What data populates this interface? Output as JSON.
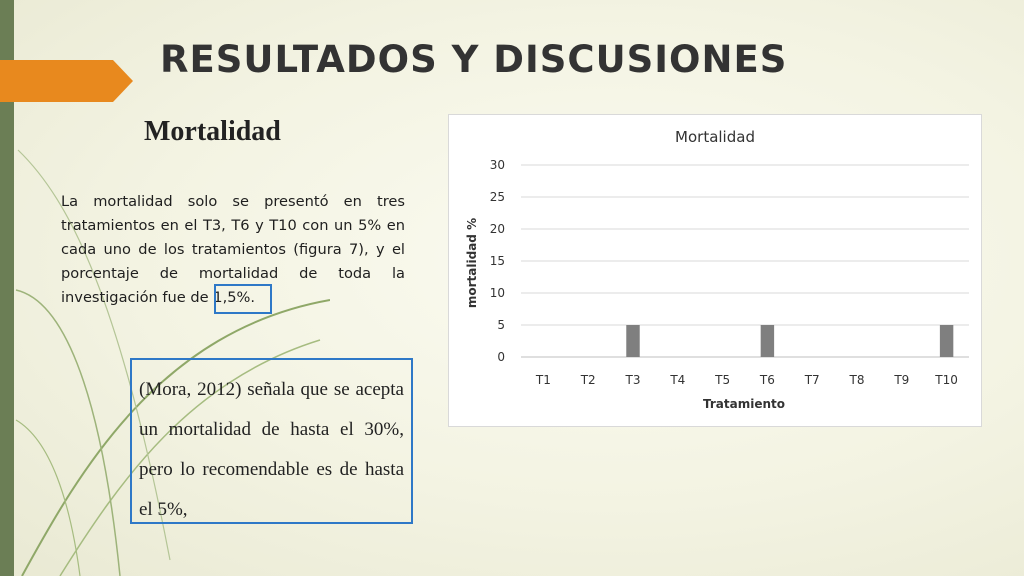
{
  "slide": {
    "title": "RESULTADOS Y DISCUSIONES",
    "subtitle": "Mortalidad",
    "paragraph": "La mortalidad solo se presentó en tres tratamientos en el T3, T6 y T10 con un 5% en cada uno de los tratamientos (figura 7), y el porcentaje de mortalidad de toda la investigación fue de 1,5%.",
    "quote": "(Mora, 2012) señala que se acepta un mortalidad de hasta el 30%, pero lo recomendable es de hasta el 5%,",
    "colors": {
      "left_bar": "#6b7e55",
      "accent": "#e8891e",
      "box_border": "#2e78c7",
      "bar": "#7f7f7f"
    }
  },
  "chart_data": {
    "type": "bar",
    "title": "Mortalidad",
    "xlabel": "Tratamiento",
    "ylabel": "mortalidad %",
    "categories": [
      "T1",
      "T2",
      "T3",
      "T4",
      "T5",
      "T6",
      "T7",
      "T8",
      "T9",
      "T10"
    ],
    "values": [
      0,
      0,
      5,
      0,
      0,
      5,
      0,
      0,
      0,
      5
    ],
    "ylim": [
      0,
      30
    ],
    "yticks": [
      0,
      5,
      10,
      15,
      20,
      25,
      30
    ],
    "grid": true,
    "legend": "none"
  }
}
